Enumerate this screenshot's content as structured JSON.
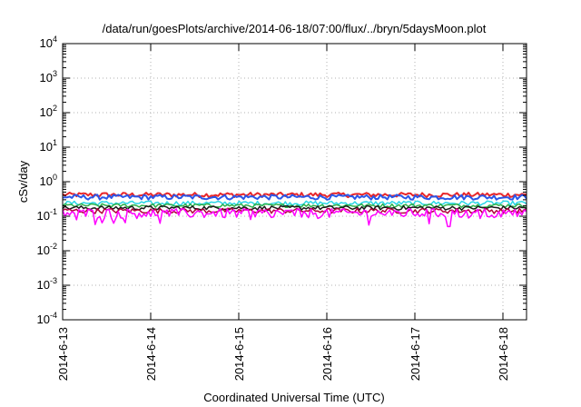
{
  "chart_data": {
    "type": "line",
    "title": "/data/run/goesPlots/archive/2014-06-18/07:00/flux/../bryn/5daysMoon.plot",
    "xlabel": "Coordinated Universal Time (UTC)",
    "ylabel": "cSv/day",
    "yscale": "log",
    "ylim": [
      0.0001,
      10000
    ],
    "xlim": [
      "2014-06-13",
      "2014-06-18 07:00"
    ],
    "grid": true,
    "x_ticks": [
      "2014-6-13",
      "2014-6-14",
      "2014-6-15",
      "2014-6-16",
      "2014-6-17",
      "2014-6-18"
    ],
    "y_ticks": [
      {
        "base": "10",
        "exp": "-4",
        "value": 0.0001
      },
      {
        "base": "10",
        "exp": "-3",
        "value": 0.001
      },
      {
        "base": "10",
        "exp": "-2",
        "value": 0.01
      },
      {
        "base": "10",
        "exp": "-1",
        "value": 0.1
      },
      {
        "base": "10",
        "exp": "0",
        "value": 1
      },
      {
        "base": "10",
        "exp": "1",
        "value": 10
      },
      {
        "base": "10",
        "exp": "2",
        "value": 100
      },
      {
        "base": "10",
        "exp": "3",
        "value": 1000
      },
      {
        "base": "10",
        "exp": "4",
        "value": 10000
      }
    ],
    "series": [
      {
        "color": "#e8262a",
        "base": 0.42,
        "jitter": 0.13
      },
      {
        "color": "#2a56e8",
        "base": 0.36,
        "jitter": 0.12
      },
      {
        "color": "#29d6e6",
        "base": 0.24,
        "jitter": 0.07
      },
      {
        "color": "#2db04a",
        "base": 0.205,
        "jitter": 0.05
      },
      {
        "color": "#1a1a1a",
        "base": 0.175,
        "jitter": 0.05
      },
      {
        "color": "#b0003a",
        "base": 0.145,
        "jitter": 0.05
      },
      {
        "color": "#ff00ff",
        "base": 0.125,
        "jitter": 0.08
      }
    ]
  }
}
